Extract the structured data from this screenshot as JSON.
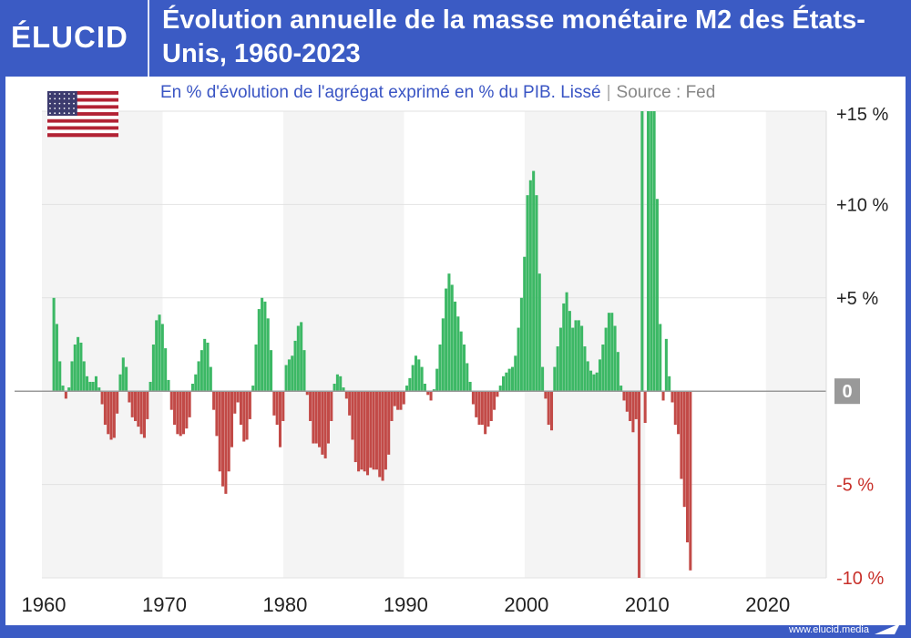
{
  "brand": {
    "logo_text": "ÉLUCID",
    "footer_url": "www.elucid.media"
  },
  "header": {
    "title": "Évolution annuelle de la masse monétaire M2 des États-Unis, 1960-2023",
    "subtitle": "En % d'évolution de l'agrégat exprimé en % du PIB. Lissé",
    "source": "Source : Fed",
    "separator": "|"
  },
  "flag_icon": "us-flag-icon",
  "colors": {
    "positive": "#3cb865",
    "negative": "#c24a47",
    "accent": "#3b5bc4",
    "zero_badge": "#999999"
  },
  "chart_data": {
    "type": "bar",
    "title": "Évolution annuelle de la masse monétaire M2 des États-Unis, 1960-2023",
    "subtitle": "En % d'évolution de l'agrégat exprimé en % du PIB. Lissé",
    "ylim": [
      -10,
      15
    ],
    "xlim": [
      1960,
      2024
    ],
    "x_ticks": [
      1960,
      1970,
      1980,
      1990,
      2000,
      2010,
      2020
    ],
    "x_tick_labels": [
      "1960",
      "1970",
      "1980",
      "1990",
      "2000",
      "2010",
      "2020"
    ],
    "y_ticks": [
      15,
      10,
      5,
      0,
      -5,
      -10
    ],
    "y_tick_labels": [
      "+15 %",
      "+10 %",
      "+5 %",
      "0",
      "-5 %",
      "-10 %"
    ],
    "grid": true,
    "bar_step_years": 0.25,
    "x_start": 1961.0,
    "values": [
      5.0,
      3.6,
      1.6,
      0.3,
      -0.4,
      0.2,
      1.6,
      2.5,
      2.9,
      2.6,
      1.6,
      0.8,
      0.5,
      0.5,
      0.8,
      0.2,
      -0.7,
      -1.8,
      -2.3,
      -2.6,
      -2.5,
      -1.2,
      0.9,
      1.8,
      1.3,
      -0.6,
      -1.4,
      -1.6,
      -1.9,
      -2.3,
      -2.5,
      -1.5,
      0.5,
      2.5,
      3.8,
      4.1,
      3.6,
      2.3,
      0.6,
      -1.0,
      -1.8,
      -2.3,
      -2.4,
      -2.3,
      -2.0,
      -1.4,
      0.4,
      0.9,
      1.6,
      2.2,
      2.8,
      2.6,
      1.3,
      -1.0,
      -2.4,
      -4.3,
      -5.1,
      -5.5,
      -4.3,
      -3.0,
      -1.2,
      -0.6,
      -1.8,
      -2.7,
      -2.6,
      -1.5,
      0.3,
      2.5,
      4.4,
      5.0,
      4.8,
      3.9,
      2.2,
      -1.3,
      -1.8,
      -3.0,
      -1.6,
      1.4,
      1.7,
      1.9,
      2.7,
      3.5,
      3.7,
      2.2,
      -0.2,
      -1.6,
      -2.8,
      -2.8,
      -3.0,
      -3.4,
      -3.6,
      -2.8,
      -1.6,
      0.4,
      0.9,
      0.8,
      0.2,
      -0.4,
      -1.3,
      -2.6,
      -3.8,
      -4.3,
      -4.2,
      -4.3,
      -4.5,
      -4.1,
      -4.2,
      -4.2,
      -4.6,
      -4.8,
      -4.2,
      -3.4,
      -1.6,
      -0.8,
      -1.0,
      -1.0,
      -0.7,
      0.3,
      0.7,
      1.4,
      1.9,
      1.7,
      1.3,
      0.4,
      -0.2,
      -0.5,
      0.1,
      1.2,
      2.5,
      3.9,
      5.5,
      6.3,
      5.7,
      4.8,
      4.0,
      3.2,
      2.5,
      1.5,
      0.5,
      -0.7,
      -1.4,
      -1.8,
      -1.8,
      -2.3,
      -1.9,
      -1.6,
      -1.0,
      -0.3,
      0.3,
      0.8,
      1.0,
      1.2,
      1.3,
      1.9,
      3.4,
      5.0,
      7.2,
      10.5,
      11.3,
      11.8,
      10.5,
      6.3,
      1.3,
      -0.4,
      -1.8,
      -2.1,
      1.3,
      2.4,
      3.4,
      4.7,
      5.3,
      4.3,
      3.4,
      3.8,
      3.8,
      3.5,
      2.4,
      1.6,
      1.1,
      0.9,
      1.0,
      1.7,
      2.5,
      3.4,
      4.2,
      4.2,
      3.5,
      2.1,
      0.3,
      -0.5,
      -1.1,
      -1.6,
      -2.2,
      -1.5,
      -10.0,
      15.0,
      -1.7,
      15.0,
      15.0,
      15.0,
      10.3,
      3.6,
      -0.5,
      2.8,
      0.8,
      -0.6,
      -1.8,
      -2.3,
      -4.7,
      -6.2,
      -8.1,
      -9.6
    ]
  }
}
